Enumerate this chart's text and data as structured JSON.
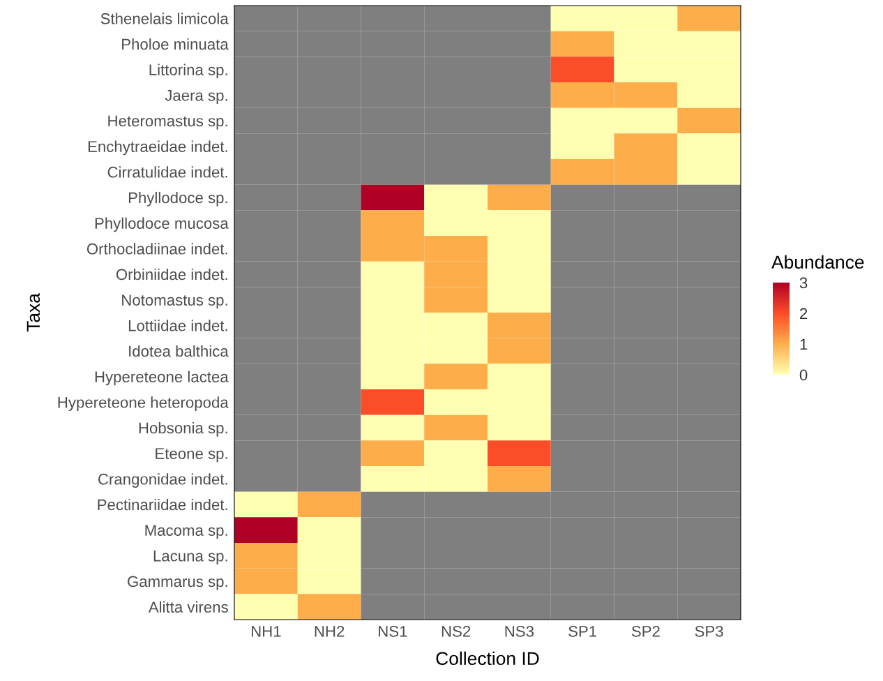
{
  "chart_data": {
    "type": "heatmap",
    "xlabel": "Collection ID",
    "ylabel": "Taxa",
    "clabel": "Abundance",
    "categories": [
      "NH1",
      "NH2",
      "NS1",
      "NS2",
      "NS3",
      "SP1",
      "SP2",
      "SP3"
    ],
    "y_categories": [
      "Sthenelais limicola",
      "Pholoe minuata",
      "Littorina sp.",
      "Jaera sp.",
      "Heteromastus sp.",
      "Enchytraeidae indet.",
      "Cirratulidae indet.",
      "Phyllodoce sp.",
      "Phyllodoce mucosa",
      "Orthocladiinae indet.",
      "Orbiniidae indet.",
      "Notomastus sp.",
      "Lottiidae indet.",
      "Idotea balthica",
      "Hypereteone lactea",
      "Hypereteone heteropoda",
      "Hobsonia sp.",
      "Eteone sp.",
      "Crangonidae indet.",
      "Pectinariidae indet.",
      "Macoma sp.",
      "Lacuna sp.",
      "Gammarus sp.",
      "Alitta virens"
    ],
    "cells": [
      [
        null,
        null,
        null,
        null,
        null,
        0,
        0,
        1
      ],
      [
        null,
        null,
        null,
        null,
        null,
        1,
        0,
        0
      ],
      [
        null,
        null,
        null,
        null,
        null,
        2,
        0,
        0
      ],
      [
        null,
        null,
        null,
        null,
        null,
        1,
        1,
        0
      ],
      [
        null,
        null,
        null,
        null,
        null,
        0,
        0,
        1
      ],
      [
        null,
        null,
        null,
        null,
        null,
        0,
        1,
        0
      ],
      [
        null,
        null,
        null,
        null,
        null,
        1,
        1,
        0
      ],
      [
        null,
        null,
        3,
        0,
        1,
        null,
        null,
        null
      ],
      [
        null,
        null,
        1,
        0,
        0,
        null,
        null,
        null
      ],
      [
        null,
        null,
        1,
        1,
        0,
        null,
        null,
        null
      ],
      [
        null,
        null,
        0,
        1,
        0,
        null,
        null,
        null
      ],
      [
        null,
        null,
        0,
        1,
        0,
        null,
        null,
        null
      ],
      [
        null,
        null,
        0,
        0,
        1,
        null,
        null,
        null
      ],
      [
        null,
        null,
        0,
        0,
        1,
        null,
        null,
        null
      ],
      [
        null,
        null,
        0,
        1,
        0,
        null,
        null,
        null
      ],
      [
        null,
        null,
        2,
        0,
        0,
        null,
        null,
        null
      ],
      [
        null,
        null,
        0,
        1,
        0,
        null,
        null,
        null
      ],
      [
        null,
        null,
        1,
        0,
        2,
        null,
        null,
        null
      ],
      [
        null,
        null,
        0,
        0,
        1,
        null,
        null,
        null
      ],
      [
        0,
        1,
        null,
        null,
        null,
        null,
        null,
        null
      ],
      [
        3,
        0,
        null,
        null,
        null,
        null,
        null,
        null
      ],
      [
        1,
        0,
        null,
        null,
        null,
        null,
        null,
        null
      ],
      [
        1,
        0,
        null,
        null,
        null,
        null,
        null,
        null
      ],
      [
        0,
        1,
        null,
        null,
        null,
        null,
        null,
        null
      ]
    ],
    "clim": [
      0,
      3
    ],
    "cticks": [
      0,
      1,
      2,
      3
    ]
  }
}
